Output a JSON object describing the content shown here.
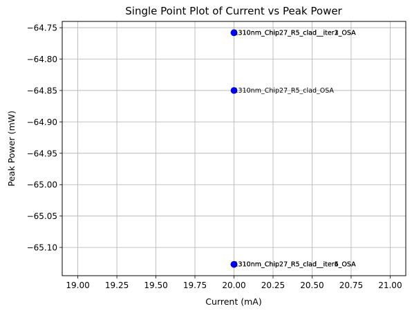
{
  "chart_data": {
    "type": "scatter",
    "title": "Single Point Plot of Current vs Peak Power",
    "xlabel": "Current (mA)",
    "ylabel": "Peak Power (mW)",
    "xlim": [
      18.9,
      21.1
    ],
    "ylim": [
      -65.145,
      -64.74
    ],
    "xticks": [
      19.0,
      19.25,
      19.5,
      19.75,
      20.0,
      20.25,
      20.5,
      20.75,
      21.0
    ],
    "xtick_labels": [
      "19.00",
      "19.25",
      "19.50",
      "19.75",
      "20.00",
      "20.25",
      "20.50",
      "20.75",
      "21.00"
    ],
    "yticks": [
      -64.75,
      -64.8,
      -64.85,
      -64.9,
      -64.95,
      -65.0,
      -65.05,
      -65.1
    ],
    "ytick_labels": [
      "−64.75",
      "−64.80",
      "−64.85",
      "−64.90",
      "−64.95",
      "−65.00",
      "−65.05",
      "−65.10"
    ],
    "grid": true,
    "marker_color": "#0000ff",
    "points": [
      {
        "x": 20.0,
        "y": -64.758,
        "label": "1310nm_Chip27_R5_clad__iter1_OSA"
      },
      {
        "x": 20.0,
        "y": -64.758,
        "label": "1310nm_Chip27_R5_clad__iter2_OSA"
      },
      {
        "x": 20.0,
        "y": -64.758,
        "label": "1310nm_Chip27_R5_clad__iter3_OSA"
      },
      {
        "x": 20.0,
        "y": -64.85,
        "label": "1310nm_Chip27_R5_clad_OSA"
      },
      {
        "x": 20.0,
        "y": -65.127,
        "label": "1310nm_Chip27_R5_clad__iter4_OSA"
      },
      {
        "x": 20.0,
        "y": -65.127,
        "label": "1310nm_Chip27_R5_clad__iter5_OSA"
      },
      {
        "x": 20.0,
        "y": -65.127,
        "label": "1310nm_Chip27_R5_clad__iter6_OSA"
      }
    ]
  }
}
